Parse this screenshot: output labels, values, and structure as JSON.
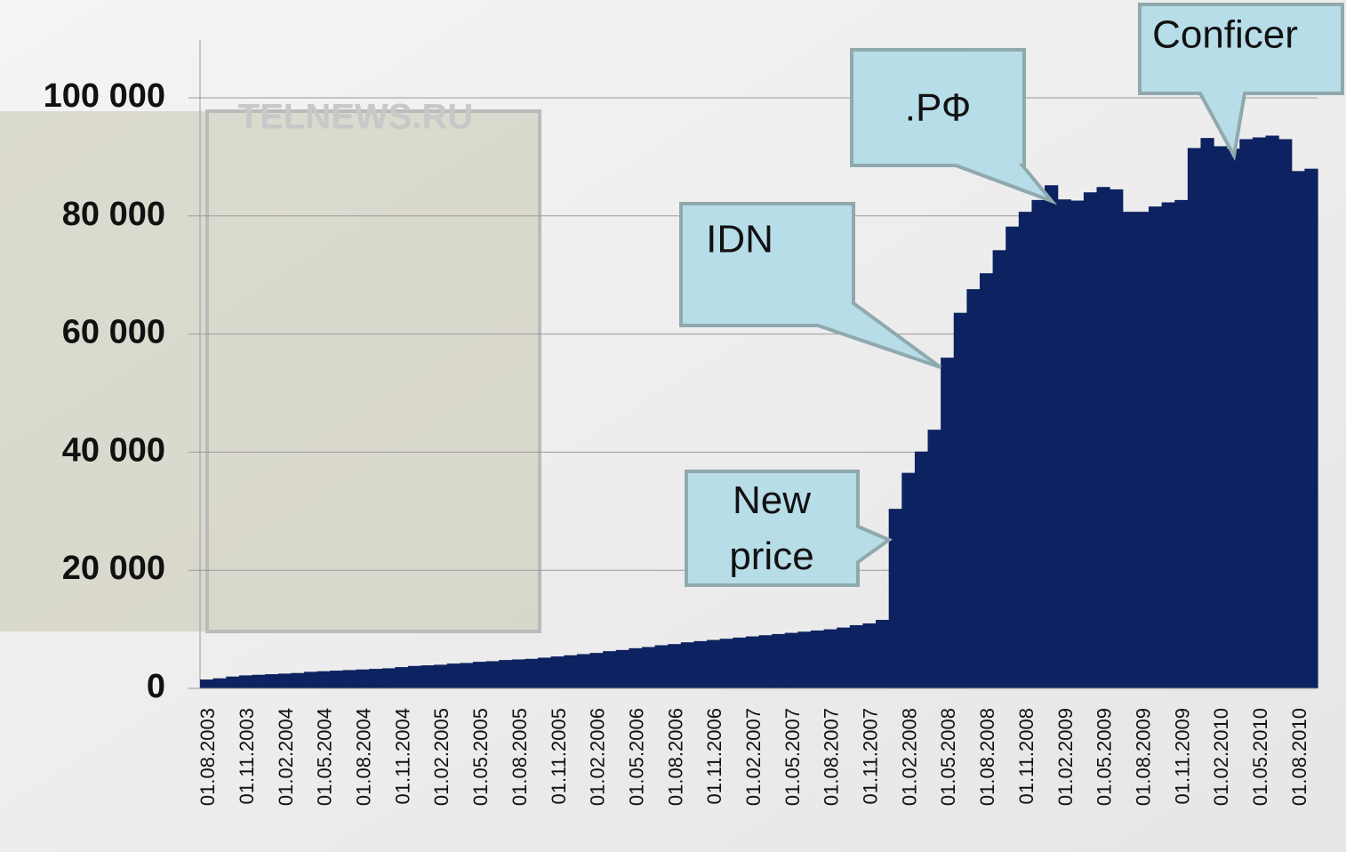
{
  "chart_data": {
    "type": "bar",
    "watermark": "TELNEWS.RU",
    "categories": [
      "01.08.2003",
      null,
      null,
      "01.11.2003",
      null,
      null,
      "01.02.2004",
      null,
      null,
      "01.05.2004",
      null,
      null,
      "01.08.2004",
      null,
      null,
      "01.11.2004",
      null,
      null,
      "01.02.2005",
      null,
      null,
      "01.05.2005",
      null,
      null,
      "01.08.2005",
      null,
      null,
      "01.11.2005",
      null,
      null,
      "01.02.2006",
      null,
      null,
      "01.05.2006",
      null,
      null,
      "01.08.2006",
      null,
      null,
      "01.11.2006",
      null,
      null,
      "01.02.2007",
      null,
      null,
      "01.05.2007",
      null,
      null,
      "01.08.2007",
      null,
      null,
      "01.11.2007",
      null,
      null,
      "01.02.2008",
      null,
      null,
      "01.05.2008",
      null,
      null,
      "01.08.2008",
      null,
      null,
      "01.11.2008",
      null,
      null,
      "01.02.2009",
      null,
      null,
      "01.05.2009",
      null,
      null,
      "01.08.2009",
      null,
      null,
      "01.11.2009",
      null,
      null,
      "01.02.2010",
      null,
      null,
      "01.05.2010",
      null,
      null,
      "01.08.2010",
      null
    ],
    "values": [
      1500,
      1700,
      2000,
      2200,
      2300,
      2400,
      2500,
      2600,
      2800,
      2900,
      3000,
      3100,
      3200,
      3300,
      3400,
      3600,
      3800,
      3900,
      4000,
      4200,
      4300,
      4500,
      4600,
      4800,
      4900,
      5000,
      5200,
      5400,
      5600,
      5800,
      6000,
      6300,
      6500,
      6800,
      7000,
      7300,
      7500,
      7800,
      8000,
      8200,
      8400,
      8600,
      8800,
      9000,
      9200,
      9400,
      9600,
      9800,
      10000,
      10300,
      10700,
      11000,
      11600,
      30400,
      36500,
      40100,
      43800,
      56000,
      63600,
      67600,
      70300,
      74200,
      78200,
      80700,
      82700,
      85200,
      82800,
      82600,
      84000,
      84900,
      84500,
      80700,
      80700,
      81600,
      82300,
      82700,
      91500,
      93200,
      91800,
      91400,
      93000,
      93300,
      93600,
      93000,
      87600,
      88000
    ],
    "color": "#0d2260",
    "ylim": [
      0,
      100000
    ],
    "yticks": [
      {
        "value": 0,
        "label": "0"
      },
      {
        "value": 20000,
        "label": "20 000"
      },
      {
        "value": 40000,
        "label": "40 000"
      },
      {
        "value": 60000,
        "label": "60 000"
      },
      {
        "value": 80000,
        "label": "80 000"
      },
      {
        "value": 100000,
        "label": "100 000"
      }
    ],
    "grid": true,
    "annotations": [
      {
        "text": "New price"
      },
      {
        "text": "IDN"
      },
      {
        "text": ".РФ"
      },
      {
        "text": "Conficer"
      }
    ]
  }
}
